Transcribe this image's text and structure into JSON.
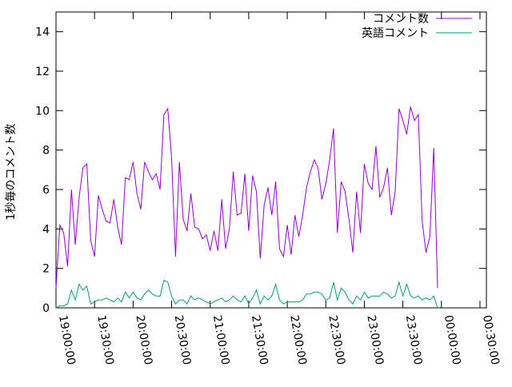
{
  "chart_data": {
    "type": "line",
    "ylabel": "1秒毎のコメント数",
    "ylim": [
      0,
      15
    ],
    "yticks": [
      0,
      2,
      4,
      6,
      8,
      10,
      12,
      14
    ],
    "x_start": "19:00:00",
    "x_end": "00:35:00",
    "x_step_minutes": 3,
    "xticks": [
      "19:00:00",
      "19:30:00",
      "20:00:00",
      "20:30:00",
      "21:00:00",
      "21:30:00",
      "22:00:00",
      "22:30:00",
      "23:00:00",
      "23:30:00",
      "00:00:00",
      "00:30:00"
    ],
    "grid": false,
    "legend_position": "top-right",
    "series": [
      {
        "name": "コメント数",
        "color": "#9400d3",
        "values": [
          1.0,
          4.2,
          3.8,
          2.1,
          6.0,
          3.2,
          5.6,
          7.1,
          7.3,
          3.4,
          2.6,
          5.7,
          5.0,
          4.4,
          4.3,
          5.5,
          4.1,
          3.2,
          6.6,
          6.5,
          7.4,
          5.8,
          5.0,
          7.4,
          6.9,
          6.5,
          6.8,
          6.0,
          9.8,
          10.1,
          7.6,
          2.6,
          7.4,
          4.5,
          3.9,
          5.8,
          4.1,
          4.0,
          3.5,
          3.7,
          2.9,
          3.9,
          2.9,
          5.5,
          3.0,
          4.0,
          6.9,
          4.7,
          4.8,
          6.8,
          3.9,
          6.7,
          5.9,
          2.5,
          5.2,
          6.1,
          4.7,
          6.4,
          3.0,
          2.6,
          4.2,
          2.7,
          4.7,
          3.6,
          4.7,
          6.1,
          6.9,
          7.5,
          7.1,
          5.5,
          6.3,
          7.5,
          9.1,
          3.8,
          6.4,
          5.9,
          4.5,
          2.8,
          5.9,
          3.8,
          7.3,
          6.3,
          6.0,
          8.2,
          5.6,
          6.1,
          7.1,
          4.7,
          5.9,
          10.1,
          9.5,
          8.8,
          10.2,
          9.5,
          9.8,
          4.4,
          2.8,
          3.6,
          8.1,
          1.0
        ]
      },
      {
        "name": "英語コメント",
        "color": "#009e73",
        "values": [
          0.0,
          0.1,
          0.1,
          0.2,
          0.9,
          0.4,
          1.2,
          0.9,
          1.1,
          0.2,
          0.3,
          0.4,
          0.4,
          0.5,
          0.4,
          0.3,
          0.5,
          0.3,
          0.8,
          0.5,
          0.8,
          0.5,
          0.4,
          0.7,
          0.9,
          0.7,
          0.6,
          0.6,
          1.4,
          1.3,
          0.6,
          0.2,
          0.4,
          0.4,
          0.2,
          0.6,
          0.4,
          0.5,
          0.4,
          0.3,
          0.2,
          0.3,
          0.4,
          0.5,
          0.3,
          0.4,
          0.6,
          0.4,
          0.3,
          0.6,
          0.2,
          0.5,
          0.9,
          0.2,
          0.6,
          0.4,
          0.6,
          1.2,
          0.4,
          0.2,
          0.3,
          0.3,
          0.3,
          0.3,
          0.4,
          0.7,
          0.7,
          0.8,
          0.8,
          0.7,
          0.4,
          0.5,
          1.3,
          0.4,
          1.0,
          0.8,
          0.4,
          0.2,
          0.6,
          0.4,
          0.8,
          0.5,
          0.6,
          0.6,
          0.6,
          0.8,
          0.7,
          0.5,
          0.6,
          1.3,
          0.6,
          1.2,
          0.6,
          0.5,
          0.6,
          0.4,
          0.5,
          0.4,
          0.6,
          0.0
        ]
      }
    ]
  }
}
